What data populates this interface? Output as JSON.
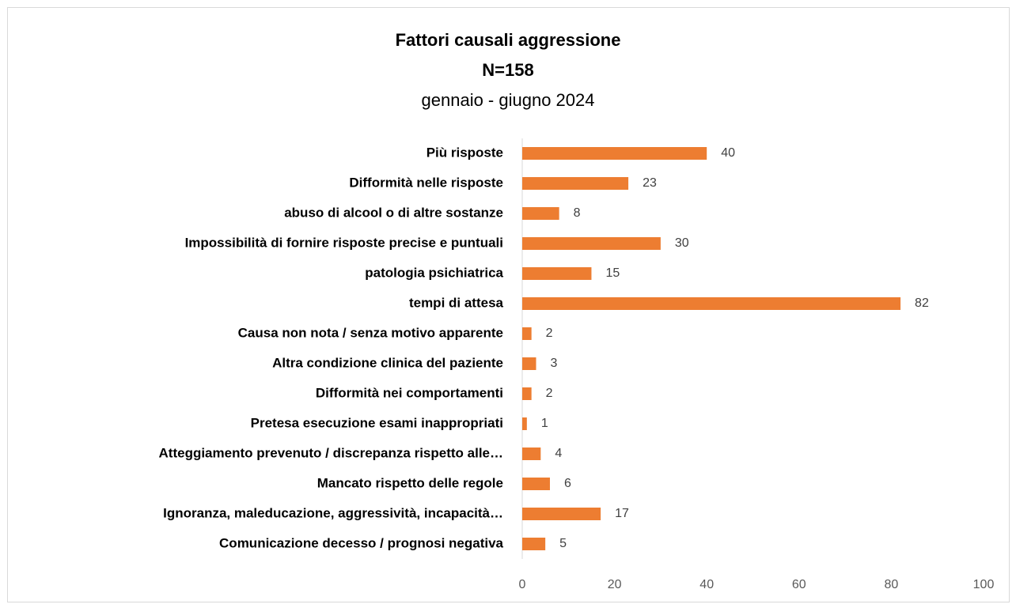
{
  "chart_data": {
    "type": "bar",
    "orientation": "horizontal",
    "title": [
      "Fattori causali aggressione",
      "N=158"
    ],
    "subtitle": "gennaio - giugno 2024",
    "categories": [
      "Più risposte",
      "Difformità nelle risposte",
      "abuso di alcool o di altre sostanze",
      "Impossibilità di fornire risposte precise e puntuali",
      "patologia psichiatrica",
      "tempi di attesa",
      "Causa non nota / senza motivo apparente",
      "Altra condizione clinica del paziente",
      "Difformità nei comportamenti",
      "Pretesa esecuzione esami inappropriati",
      "Atteggiamento prevenuto / discrepanza rispetto alle…",
      "Mancato rispetto delle regole",
      "Ignoranza, maleducazione, aggressività, incapacità…",
      "Comunicazione decesso / prognosi negativa"
    ],
    "values": [
      40,
      23,
      8,
      30,
      15,
      82,
      2,
      3,
      2,
      1,
      4,
      6,
      17,
      5
    ],
    "color": "#ed7d31",
    "xlim": [
      0,
      100
    ],
    "xticks": [
      0,
      20,
      40,
      60,
      80,
      100
    ],
    "grid": false
  }
}
